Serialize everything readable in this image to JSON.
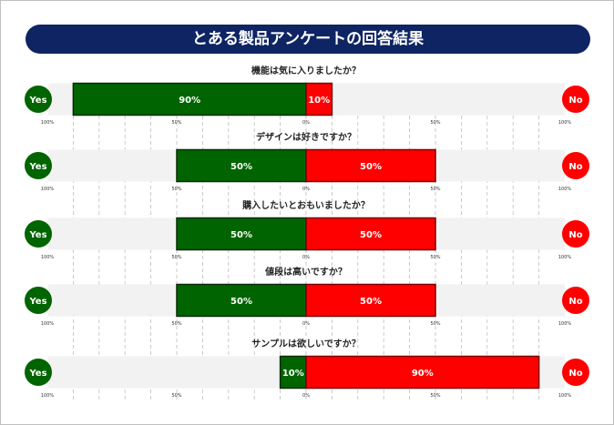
{
  "title": "とある製品アンケートの回答結果",
  "colors": {
    "yes": "#006400",
    "no": "#ff0000",
    "title_bg": "#0e2463",
    "track": "#f2f2f2"
  },
  "chart_data": {
    "type": "bar",
    "orientation": "horizontal-diverging",
    "title": "とある製品アンケートの回答結果",
    "left_label": "Yes",
    "right_label": "No",
    "categories": [
      "機能は気に入りましたか？",
      "デザインは好きですか？",
      "購入したいとおもいましたか？",
      "値段は高いですか？",
      "サンプルは欲しいですか？"
    ],
    "series": [
      {
        "name": "Yes",
        "values": [
          90,
          50,
          50,
          50,
          10
        ]
      },
      {
        "name": "No",
        "values": [
          10,
          50,
          50,
          50,
          90
        ]
      }
    ],
    "value_labels": {
      "yes": [
        "90%",
        "50%",
        "50%",
        "50%",
        "10%"
      ],
      "no": [
        "10%",
        "50%",
        "50%",
        "50%",
        "90%"
      ]
    },
    "axis": {
      "range": [
        -100,
        100
      ],
      "ticks": [
        -100,
        -50,
        0,
        50,
        100
      ],
      "tick_labels": [
        "100%",
        "50%",
        "0%",
        "50%",
        "100%"
      ]
    },
    "grid": true
  }
}
